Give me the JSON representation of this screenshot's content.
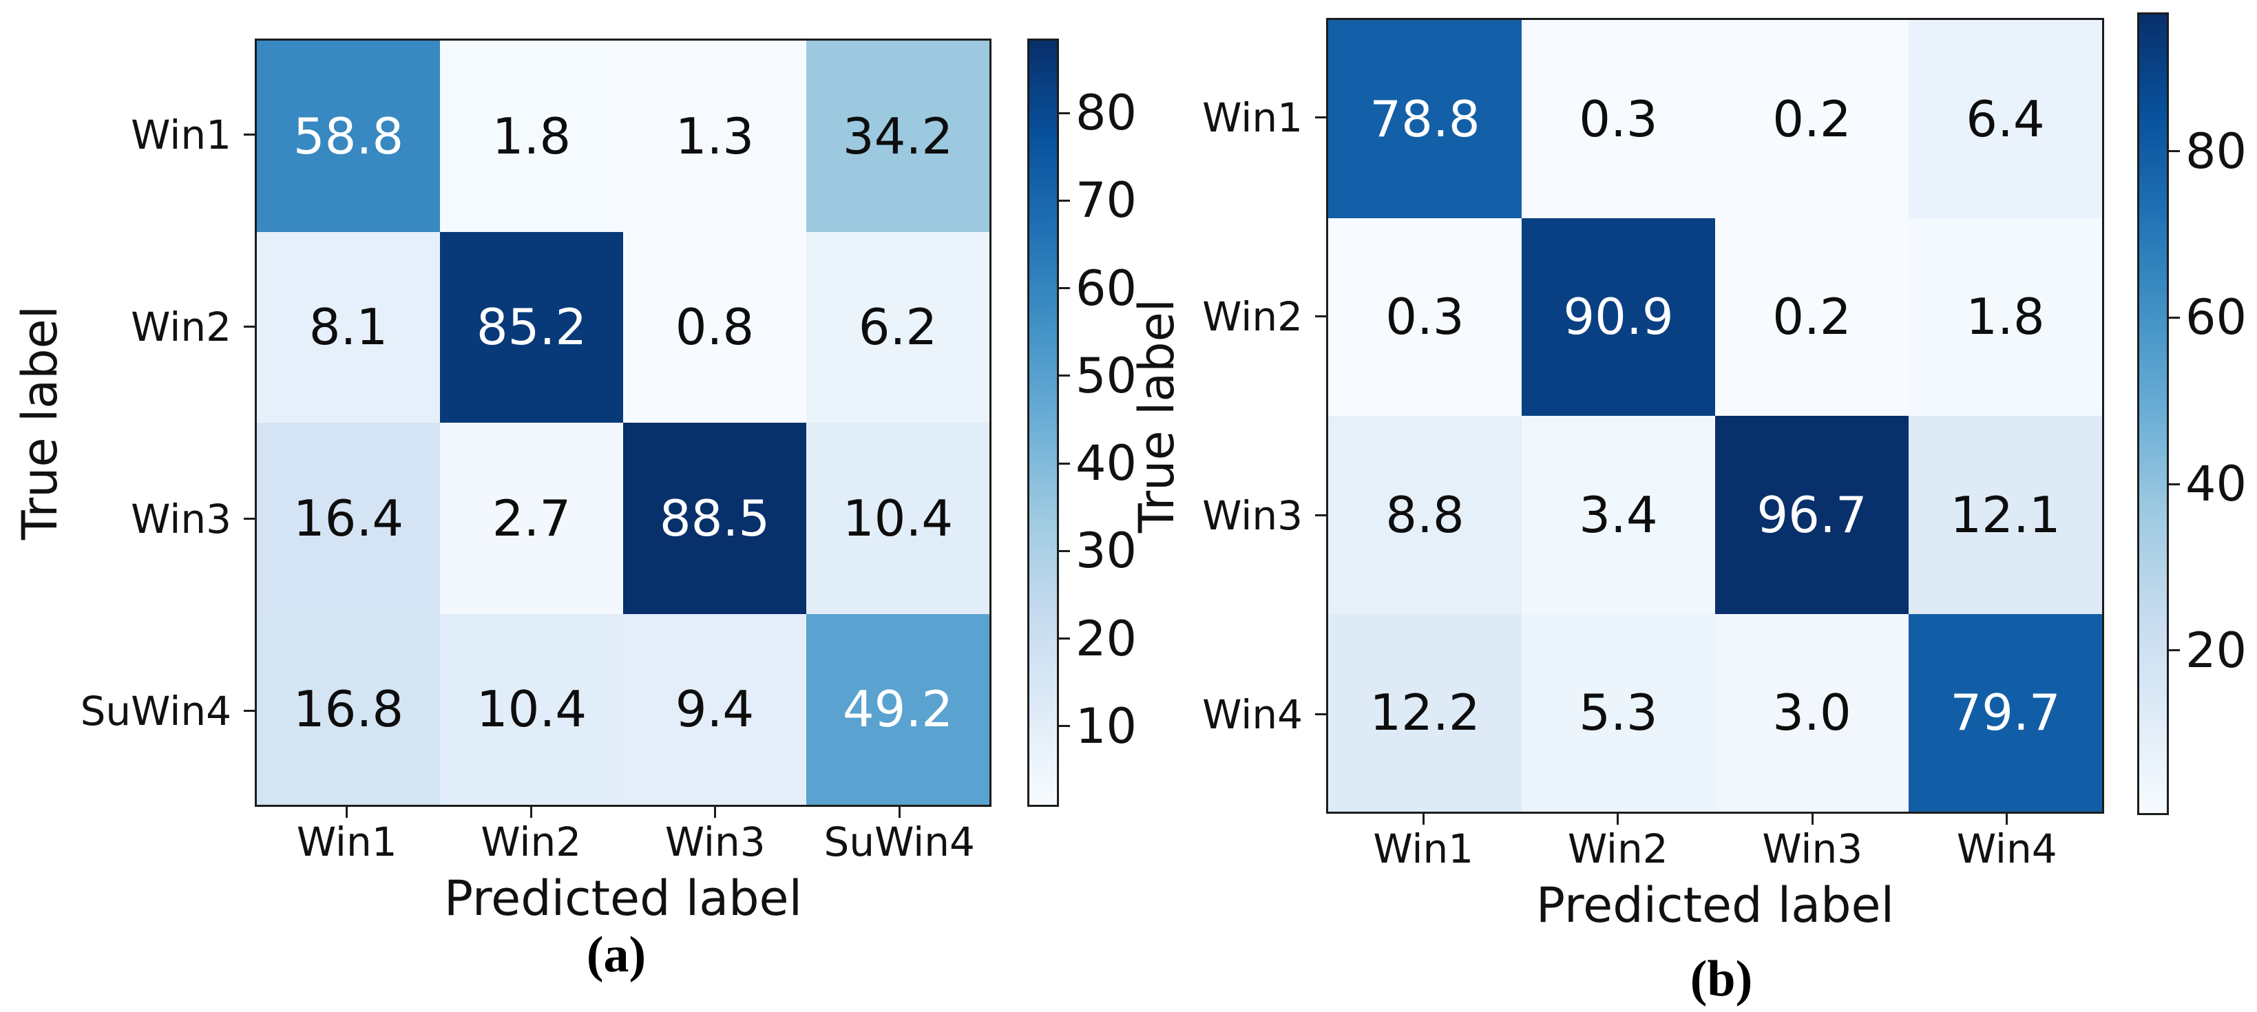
{
  "figure": {
    "background": "#ffffff",
    "caption_a": "(a)",
    "caption_b": "(b)"
  },
  "colors": {
    "colormap_name": "Blues",
    "colormap_stops": [
      "#f7fbff",
      "#deebf7",
      "#c6dbef",
      "#9ecae1",
      "#6baed6",
      "#4292c6",
      "#2171b5",
      "#08519c",
      "#08306b"
    ],
    "axes_edge": "#1c1c1c",
    "tick_text": "#111111",
    "cell_text_dark": "#0d0d0d",
    "cell_text_light": "#ffffff"
  },
  "chart_data": [
    {
      "id": "a",
      "type": "heatmap",
      "caption": "(a)",
      "xlabel": "Predicted label",
      "ylabel": "True label",
      "x_ticklabels": [
        "Win1",
        "Win2",
        "Win3",
        "SuWin4"
      ],
      "y_ticklabels": [
        "Win1",
        "Win2",
        "Win3",
        "SuWin4"
      ],
      "values": [
        [
          58.8,
          1.8,
          1.3,
          34.2
        ],
        [
          8.1,
          85.2,
          0.8,
          6.2
        ],
        [
          16.4,
          2.7,
          88.5,
          10.4
        ],
        [
          16.8,
          10.4,
          9.4,
          49.2
        ]
      ],
      "value_format_decimals": 1,
      "vmin": 0.8,
      "vmax": 88.5,
      "colorbar_ticks": [
        10,
        20,
        30,
        40,
        50,
        60,
        70,
        80
      ],
      "legend_position": "right-colorbar",
      "grid": false
    },
    {
      "id": "b",
      "type": "heatmap",
      "caption": "(b)",
      "xlabel": "Predicted label",
      "ylabel": "True label",
      "x_ticklabels": [
        "Win1",
        "Win2",
        "Win3",
        "Win4"
      ],
      "y_ticklabels": [
        "Win1",
        "Win2",
        "Win3",
        "Win4"
      ],
      "values": [
        [
          78.8,
          0.3,
          0.2,
          6.4
        ],
        [
          0.3,
          90.9,
          0.2,
          1.8
        ],
        [
          8.8,
          3.4,
          96.7,
          12.1
        ],
        [
          12.2,
          5.3,
          3.0,
          79.7
        ]
      ],
      "value_format_decimals": 1,
      "vmin": 0.2,
      "vmax": 96.7,
      "colorbar_ticks": [
        20,
        40,
        60,
        80
      ],
      "legend_position": "right-colorbar",
      "grid": false
    }
  ]
}
